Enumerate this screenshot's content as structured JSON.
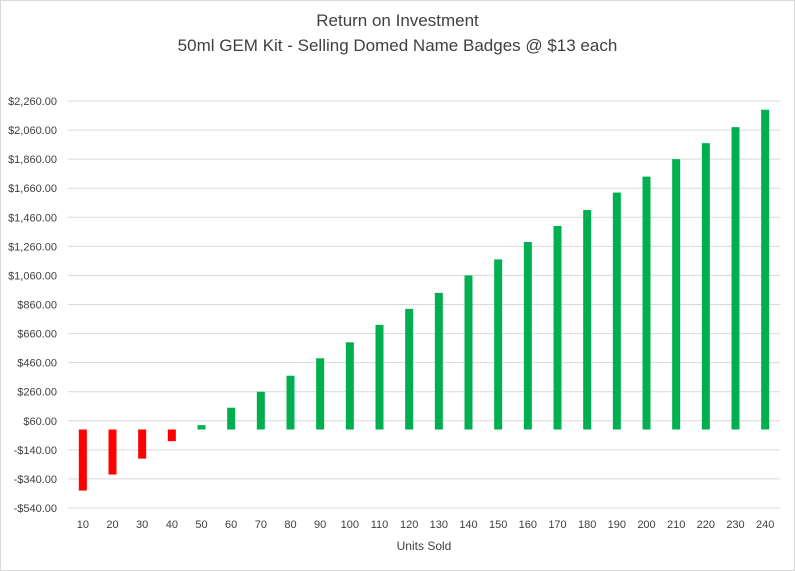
{
  "chart_data": {
    "type": "bar",
    "title": "Return on Investment",
    "subtitle": "50ml GEM Kit - Selling Domed Name Badges @ $13 each",
    "xlabel": "Units Sold",
    "ylabel": "",
    "categories": [
      "10",
      "20",
      "30",
      "40",
      "50",
      "60",
      "70",
      "80",
      "90",
      "100",
      "110",
      "120",
      "130",
      "140",
      "150",
      "160",
      "170",
      "180",
      "190",
      "200",
      "210",
      "220",
      "230",
      "240"
    ],
    "values": [
      -420,
      -310,
      -200,
      -80,
      30,
      150,
      260,
      370,
      490,
      600,
      720,
      830,
      940,
      1060,
      1170,
      1290,
      1400,
      1510,
      1630,
      1740,
      1860,
      1970,
      2080,
      2200
    ],
    "ylim": [
      -540,
      2260
    ],
    "yticks": [
      -540,
      -340,
      -140,
      60,
      260,
      460,
      660,
      860,
      1060,
      1260,
      1460,
      1660,
      1860,
      2060,
      2260
    ],
    "ytick_labels": [
      "-$540.00",
      "-$340.00",
      "-$140.00",
      "$60.00",
      "$260.00",
      "$460.00",
      "$660.00",
      "$860.00",
      "$1,060.00",
      "$1,260.00",
      "$1,460.00",
      "$1,660.00",
      "$1,860.00",
      "$2,060.00",
      "$2,260.00"
    ],
    "grid": true,
    "legend": "none",
    "colors": {
      "positive": "#00b050",
      "negative": "#ff0000",
      "grid": "#d9d9d9",
      "text": "#404040"
    }
  }
}
